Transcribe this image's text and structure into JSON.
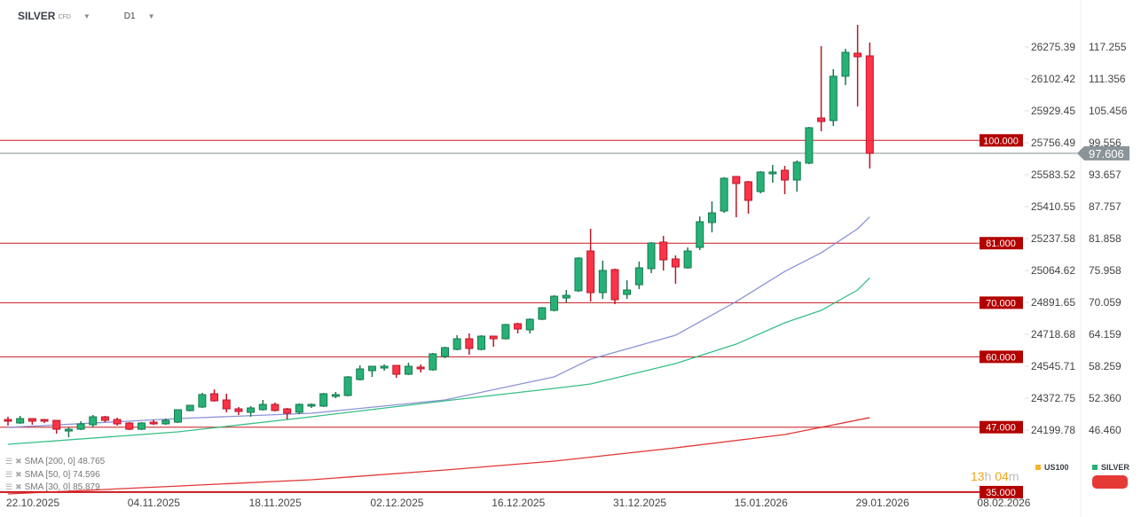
{
  "header": {
    "symbol": "SILVER",
    "symbol_type": "CFD",
    "timeframe": "D1",
    "dropdown_icon": "caret-down"
  },
  "indicators": [
    {
      "label": "SMA [200,  0] 48.765",
      "color": "#e02020"
    },
    {
      "label": "SMA [50,  0] 74.596",
      "color": "#20b87a"
    },
    {
      "label": "SMA [30,  0] 85.879",
      "color": "#8088d0"
    }
  ],
  "countdown": {
    "hours": "13",
    "h": "h",
    "minutes": "04",
    "m": "m"
  },
  "instruments": [
    {
      "label": "US100",
      "color": "#f7b52b"
    },
    {
      "label": "SILVER",
      "color": "#26b276"
    }
  ],
  "colors": {
    "up": "#26b276",
    "up_border": "#18784e",
    "down": "#ff3347",
    "down_border": "#b8182a",
    "level": "#c8181e",
    "level_box": "#b30000",
    "price_line": "#8a9499"
  },
  "chart_data": {
    "type": "candlestick",
    "title": "SILVER CFD D1",
    "ylim": [
      34.0,
      122.0
    ],
    "y_ticks_silver": [
      "117.255",
      "111.356",
      "105.456",
      "99.556",
      "93.657",
      "87.757",
      "81.858",
      "75.958",
      "70.059",
      "64.159",
      "58.259",
      "52.360",
      "46.460"
    ],
    "y_tick_values_silver": [
      117.255,
      111.356,
      105.456,
      99.556,
      93.657,
      87.757,
      81.858,
      75.958,
      70.059,
      64.159,
      58.259,
      52.36,
      46.46
    ],
    "y_ticks_us100": [
      "26275.39",
      "26102.42",
      "25929.45",
      "25756.49",
      "25583.52",
      "25410.55",
      "25237.58",
      "25064.62",
      "24891.65",
      "24718.68",
      "24545.71",
      "24372.75",
      "24199.78"
    ],
    "x_ticks": [
      "22.10.2025",
      "04.11.2025",
      "18.11.2025",
      "02.12.2025",
      "16.12.2025",
      "31.12.2025",
      "15.01.2026",
      "29.01.2026",
      "08.02.2026"
    ],
    "x_tick_index": [
      0,
      10,
      20,
      30,
      40,
      50,
      60,
      70,
      80
    ],
    "current_price": {
      "value": 97.606,
      "label": "97.606"
    },
    "levels": [
      {
        "value": 100,
        "label": "100.000"
      },
      {
        "value": 81,
        "label": "81.000"
      },
      {
        "value": 70,
        "label": "70.000"
      },
      {
        "value": 60,
        "label": "60.000"
      },
      {
        "value": 47,
        "label": "47.000"
      },
      {
        "value": 35,
        "label": "35.000"
      }
    ],
    "ohlc": [
      [
        48.42,
        48.92,
        47.28,
        48.1
      ],
      [
        47.77,
        49.08,
        47.61,
        48.59
      ],
      [
        48.59,
        48.59,
        47.44,
        48.1
      ],
      [
        48.42,
        48.42,
        47.77,
        48.1
      ],
      [
        48.26,
        48.26,
        45.8,
        46.62
      ],
      [
        46.29,
        46.95,
        45.15,
        46.62
      ],
      [
        46.62,
        48.1,
        46.46,
        47.61
      ],
      [
        47.44,
        49.25,
        46.95,
        48.92
      ],
      [
        48.92,
        49.08,
        47.93,
        48.26
      ],
      [
        48.42,
        48.75,
        47.28,
        47.61
      ],
      [
        47.77,
        47.93,
        46.46,
        46.62
      ],
      [
        46.62,
        47.93,
        46.46,
        47.77
      ],
      [
        47.93,
        48.42,
        47.44,
        47.61
      ],
      [
        47.61,
        48.59,
        47.44,
        48.26
      ],
      [
        47.93,
        50.23,
        47.77,
        50.23
      ],
      [
        50.07,
        51.05,
        49.9,
        51.05
      ],
      [
        50.72,
        53.34,
        50.56,
        53.02
      ],
      [
        53.18,
        54.0,
        51.7,
        51.87
      ],
      [
        52.03,
        53.18,
        49.74,
        50.39
      ],
      [
        50.39,
        50.72,
        49.25,
        49.9
      ],
      [
        49.74,
        50.89,
        48.92,
        50.56
      ],
      [
        50.23,
        52.03,
        50.07,
        51.21
      ],
      [
        51.21,
        51.54,
        49.9,
        50.07
      ],
      [
        50.39,
        50.56,
        48.42,
        49.57
      ],
      [
        49.74,
        51.38,
        49.41,
        51.21
      ],
      [
        50.89,
        51.38,
        50.56,
        51.21
      ],
      [
        50.89,
        53.34,
        50.72,
        53.18
      ],
      [
        52.69,
        53.51,
        52.36,
        53.02
      ],
      [
        52.85,
        56.45,
        52.69,
        56.29
      ],
      [
        55.8,
        58.42,
        55.63,
        57.77
      ],
      [
        57.44,
        58.26,
        56.29,
        58.26
      ],
      [
        57.93,
        58.59,
        57.44,
        58.26
      ],
      [
        58.42,
        58.42,
        56.13,
        56.78
      ],
      [
        56.78,
        58.91,
        56.62,
        58.26
      ],
      [
        58.1,
        58.59,
        57.12,
        57.77
      ],
      [
        57.6,
        60.72,
        57.44,
        60.55
      ],
      [
        60.06,
        61.86,
        59.73,
        61.7
      ],
      [
        61.37,
        64.0,
        61.21,
        63.34
      ],
      [
        63.34,
        64.32,
        60.39,
        61.54
      ],
      [
        61.37,
        64.0,
        61.21,
        63.83
      ],
      [
        63.83,
        63.83,
        61.86,
        63.34
      ],
      [
        63.34,
        66.1,
        63.2,
        65.96
      ],
      [
        66.12,
        66.29,
        64.32,
        65.14
      ],
      [
        64.98,
        67.1,
        64.32,
        66.94
      ],
      [
        66.94,
        69.2,
        66.8,
        69.07
      ],
      [
        68.58,
        71.4,
        68.4,
        71.2
      ],
      [
        70.88,
        72.35,
        70.06,
        71.37
      ],
      [
        72.19,
        78.4,
        72.0,
        78.25
      ],
      [
        79.56,
        83.66,
        70.22,
        71.86
      ],
      [
        71.86,
        77.76,
        70.71,
        75.96
      ],
      [
        76.12,
        76.3,
        69.73,
        70.55
      ],
      [
        71.53,
        74.14,
        70.71,
        72.35
      ],
      [
        73.33,
        77.6,
        72.52,
        76.45
      ],
      [
        76.29,
        81.2,
        75.47,
        81.04
      ],
      [
        81.2,
        82.35,
        75.96,
        77.92
      ],
      [
        78.09,
        78.74,
        73.5,
        76.61
      ],
      [
        76.45,
        80.22,
        76.3,
        79.56
      ],
      [
        80.22,
        85.95,
        79.73,
        84.97
      ],
      [
        84.81,
        88.74,
        83.0,
        86.61
      ],
      [
        86.94,
        93.2,
        86.61,
        93.0
      ],
      [
        93.33,
        93.33,
        85.79,
        92.02
      ],
      [
        92.35,
        92.51,
        86.45,
        88.91
      ],
      [
        90.54,
        94.3,
        90.21,
        94.15
      ],
      [
        93.82,
        95.46,
        92.18,
        94.15
      ],
      [
        94.48,
        95.3,
        90.05,
        92.67
      ],
      [
        92.67,
        96.28,
        90.54,
        95.97
      ],
      [
        95.79,
        102.5,
        95.6,
        102.34
      ],
      [
        104.14,
        117.42,
        101.69,
        103.49
      ],
      [
        103.65,
        113.16,
        102.67,
        111.85
      ],
      [
        111.85,
        116.93,
        110.21,
        116.27
      ],
      [
        116.11,
        121.35,
        106.27,
        115.45
      ],
      [
        115.62,
        118.07,
        94.8,
        97.606
      ]
    ],
    "series": [
      {
        "name": "SMA 30",
        "color": "#8088d0",
        "index": [
          0,
          14,
          25,
          36,
          45,
          48,
          55,
          60,
          64,
          67,
          70,
          71
        ],
        "values": [
          46.95,
          48.59,
          49.57,
          52.03,
          56.29,
          59.57,
          63.99,
          70.22,
          75.79,
          79.23,
          83.66,
          85.879
        ]
      },
      {
        "name": "SMA 50",
        "color": "#20b87a",
        "index": [
          0,
          14,
          25,
          36,
          45,
          48,
          55,
          60,
          64,
          67,
          70,
          71
        ],
        "values": [
          43.84,
          46.13,
          48.92,
          51.87,
          54.16,
          54.98,
          58.75,
          62.35,
          66.29,
          68.58,
          72.35,
          74.596
        ]
      },
      {
        "name": "SMA 200",
        "color": "#e02020",
        "index": [
          0,
          14,
          25,
          36,
          45,
          55,
          64,
          71
        ],
        "values": [
          34.66,
          36.12,
          37.28,
          39.08,
          40.72,
          43.18,
          45.64,
          48.765
        ]
      }
    ]
  }
}
